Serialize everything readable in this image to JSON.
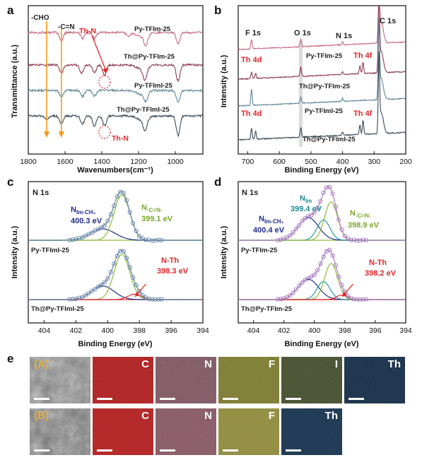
{
  "panels": {
    "a": {
      "letter": "a",
      "ylabel": "Transmittance (a.u.)",
      "xlabel": "Wavenumbers(cm⁻¹)",
      "xticks": [
        "1800",
        "1600",
        "1400",
        "1200",
        "1000"
      ],
      "xlim": [
        1800,
        850
      ],
      "marker_cho": "-CHO",
      "marker_cn": "-C=N",
      "th_n_top": "Th-N",
      "th_n_bottom": "Th-N",
      "traces": [
        "Py-TFIm-25",
        "Th@Py-TFIm-25",
        "Py-TFImI-25",
        "Th@Py-TFImI-25"
      ],
      "colors": [
        "#c86a82",
        "#8e3b52",
        "#5f8797",
        "#3a4a58"
      ]
    },
    "b": {
      "letter": "b",
      "ylabel": "Intensity (a.u.)",
      "xlabel": "Binding Energy (eV)",
      "xticks": [
        "700",
        "600",
        "500",
        "400",
        "300",
        "200"
      ],
      "xlim": [
        730,
        200
      ],
      "peaks": {
        "f1s": "F 1s",
        "o1s": "O 1s",
        "n1s": "N 1s",
        "c1s": "C 1s"
      },
      "th4d_top": "Th 4d",
      "th4f_top": "Th 4f",
      "th4d_bottom": "Th 4d",
      "th4f_bottom": "Th 4f",
      "traces": [
        "Py-TFIm-25",
        "Th@Py-TFIm-25",
        "Py-TFImI-25",
        "Th@Py-TFImI-25"
      ],
      "colors": [
        "#c86a82",
        "#8e3b52",
        "#5f8797",
        "#3a4a58"
      ]
    },
    "c": {
      "letter": "c",
      "title": "N 1s",
      "ylabel": "Intensity (a.u.)",
      "xlabel": "Binding Energy (eV)",
      "xticks": [
        "404",
        "402",
        "400",
        "398",
        "396",
        "394"
      ],
      "xlim": [
        405,
        394
      ],
      "n_im_ch3_main": "N",
      "n_im_ch3_sub": "Im-CH₃",
      "n_im_ch3_ev": "400.3 eV",
      "n_cn_main": "N",
      "n_cn_sub": "-C=N-",
      "n_cn_ev": "399.1 eV",
      "n_th": "N-Th",
      "n_th_ev": "398.3 eV",
      "upper_sample": "Py-TFImI-25",
      "lower_sample": "Th@Py-TFImI-25"
    },
    "d": {
      "letter": "d",
      "title": "N 1s",
      "ylabel": "Intensity (a.u.)",
      "xlabel": "Binding Energy (eV)",
      "xticks": [
        "404",
        "402",
        "400",
        "398",
        "396",
        "394"
      ],
      "xlim": [
        405,
        394
      ],
      "n_im_main": "N",
      "n_im_sub": "Im",
      "n_im_ev": "399.4 eV",
      "n_im_ch3_main": "N",
      "n_im_ch3_sub": "Im-CH₃",
      "n_im_ch3_ev": "400.4 eV",
      "n_cn_main": "N",
      "n_cn_sub": "-C=N-",
      "n_cn_ev": "398.9 eV",
      "n_th": "N-Th",
      "n_th_ev": "398.2 eV",
      "upper_sample": "Py-TFIm-25",
      "lower_sample": "Th@Py-TFIm-25"
    },
    "e": {
      "letter": "e",
      "row_a_label": "(A)",
      "row_b_label": "(B)",
      "row_a": [
        "C",
        "N",
        "F",
        "I",
        "Th"
      ],
      "row_b": [
        "C",
        "N",
        "F",
        "Th"
      ]
    }
  },
  "chart_data": [
    {
      "type": "line",
      "panel": "a",
      "xlabel": "Wavenumbers(cm⁻¹)",
      "ylabel": "Transmittance (a.u.)",
      "x_range": [
        1800,
        850
      ],
      "markers": [
        {
          "label": "-CHO",
          "x": 1700
        },
        {
          "label": "-C=N",
          "x": 1620
        },
        {
          "label": "Th-N",
          "x": 1385
        }
      ],
      "series": [
        {
          "name": "Py-TFIm-25",
          "dips": [
            [
              1620,
              0.4
            ],
            [
              1505,
              0.3
            ],
            [
              1440,
              0.3
            ],
            [
              1255,
              0.2
            ],
            [
              1160,
              0.5
            ],
            [
              985,
              0.6
            ]
          ]
        },
        {
          "name": "Th@Py-TFIm-25",
          "dips": [
            [
              1620,
              0.4
            ],
            [
              1510,
              0.4
            ],
            [
              1440,
              0.4
            ],
            [
              1385,
              0.5
            ],
            [
              1165,
              0.6
            ],
            [
              985,
              0.8
            ]
          ]
        },
        {
          "name": "Py-TFImI-25",
          "dips": [
            [
              1620,
              0.3
            ],
            [
              1505,
              0.3
            ],
            [
              1440,
              0.3
            ],
            [
              1160,
              0.4
            ],
            [
              985,
              0.6
            ]
          ]
        },
        {
          "name": "Th@Py-TFImI-25",
          "dips": [
            [
              1700,
              0.2
            ],
            [
              1620,
              0.4
            ],
            [
              1505,
              0.4
            ],
            [
              1440,
              0.5
            ],
            [
              1385,
              0.5
            ],
            [
              1165,
              0.6
            ],
            [
              985,
              1.0
            ]
          ]
        }
      ]
    },
    {
      "type": "line",
      "panel": "b",
      "xlabel": "Binding Energy (eV)",
      "ylabel": "Intensity (a.u.)",
      "x_range": [
        730,
        200
      ],
      "peak_positions": {
        "F 1s": 688,
        "O 1s": 532,
        "N 1s": 400,
        "C 1s": 285,
        "Th 4d": 675,
        "Th 4f": 335
      },
      "series": [
        {
          "name": "Py-TFIm-25",
          "peaks": [
            [
              688,
              0.3
            ],
            [
              532,
              0.25
            ],
            [
              400,
              0.1
            ],
            [
              285,
              1.0
            ]
          ]
        },
        {
          "name": "Th@Py-TFIm-25",
          "peaks": [
            [
              688,
              0.2
            ],
            [
              675,
              0.15
            ],
            [
              532,
              0.3
            ],
            [
              400,
              0.1
            ],
            [
              345,
              0.25
            ],
            [
              335,
              0.35
            ],
            [
              285,
              1.0
            ]
          ]
        },
        {
          "name": "Py-TFImI-25",
          "peaks": [
            [
              688,
              0.5
            ],
            [
              532,
              0.2
            ],
            [
              400,
              0.1
            ],
            [
              285,
              1.0
            ]
          ]
        },
        {
          "name": "Th@Py-TFImI-25",
          "peaks": [
            [
              688,
              0.35
            ],
            [
              675,
              0.25
            ],
            [
              532,
              0.3
            ],
            [
              400,
              0.1
            ],
            [
              345,
              0.3
            ],
            [
              335,
              0.45
            ],
            [
              285,
              1.0
            ]
          ]
        }
      ]
    },
    {
      "type": "line",
      "panel": "c",
      "xlabel": "Binding Energy (eV)",
      "ylabel": "Intensity (a.u.)",
      "x_range": [
        405,
        394
      ],
      "series": [
        {
          "name": "Py-TFImI-25",
          "components": [
            {
              "label": "N Im-CH3",
              "center": 400.3,
              "height": 0.25,
              "width": 1.1
            },
            {
              "label": "N -C=N-",
              "center": 399.1,
              "height": 1.0,
              "width": 0.7
            }
          ]
        },
        {
          "name": "Th@Py-TFImI-25",
          "components": [
            {
              "label": "N Im-CH3",
              "center": 400.3,
              "height": 0.3,
              "width": 1.0
            },
            {
              "label": "N -C=N-",
              "center": 399.1,
              "height": 1.0,
              "width": 0.7
            },
            {
              "label": "N-Th",
              "center": 398.3,
              "height": 0.12,
              "width": 0.6
            }
          ]
        }
      ]
    },
    {
      "type": "line",
      "panel": "d",
      "xlabel": "Binding Energy (eV)",
      "ylabel": "Intensity (a.u.)",
      "x_range": [
        405,
        394
      ],
      "series": [
        {
          "name": "Py-TFIm-25",
          "components": [
            {
              "label": "N Im-CH3",
              "center": 400.4,
              "height": 0.5,
              "width": 0.95
            },
            {
              "label": "N Im",
              "center": 399.4,
              "height": 0.45,
              "width": 0.6
            },
            {
              "label": "N -C=N-",
              "center": 398.9,
              "height": 0.85,
              "width": 0.6
            }
          ]
        },
        {
          "name": "Th@Py-TFIm-25",
          "components": [
            {
              "label": "N Im-CH3",
              "center": 400.4,
              "height": 0.45,
              "width": 0.95
            },
            {
              "label": "N Im",
              "center": 399.4,
              "height": 0.4,
              "width": 0.6
            },
            {
              "label": "N -C=N-",
              "center": 398.9,
              "height": 0.8,
              "width": 0.6
            },
            {
              "label": "N-Th",
              "center": 398.2,
              "height": 0.1,
              "width": 0.5
            }
          ]
        }
      ]
    }
  ]
}
